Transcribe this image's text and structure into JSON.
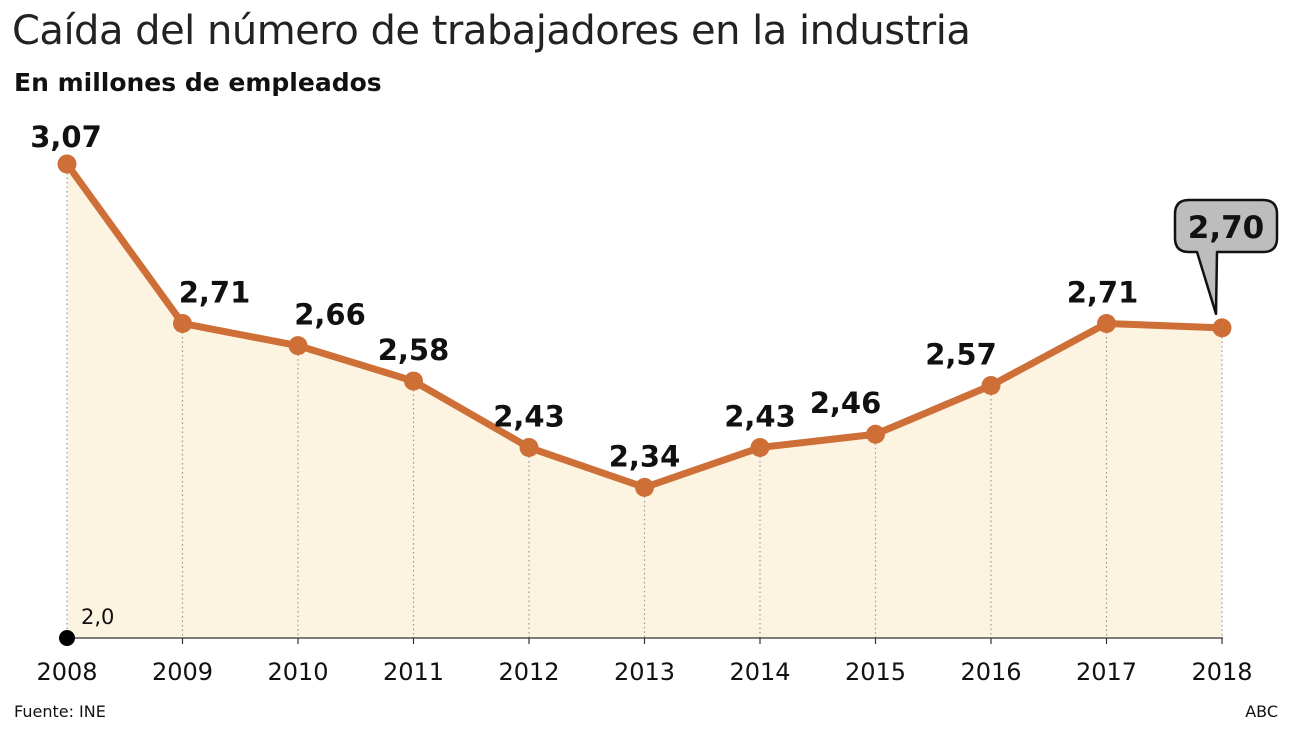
{
  "title": "Caída del número de trabajadores en la industria",
  "subtitle": "En millones de empleados",
  "source": "Fuente: INE",
  "credit": "ABC",
  "colors": {
    "line": "#cd6f37",
    "area": "#fdf3e1",
    "callout": "#bdbdbd",
    "text": "#111111"
  },
  "chart_data": {
    "type": "area",
    "x": [
      "2008",
      "2009",
      "2010",
      "2011",
      "2012",
      "2013",
      "2014",
      "2015",
      "2016",
      "2017",
      "2018"
    ],
    "values": [
      3.07,
      2.71,
      2.66,
      2.58,
      2.43,
      2.34,
      2.43,
      2.46,
      2.57,
      2.71,
      2.7
    ],
    "value_labels": [
      "3,07",
      "2,71",
      "2,66",
      "2,58",
      "2,43",
      "2,34",
      "2,43",
      "2,46",
      "2,57",
      "2,71",
      "2,70"
    ],
    "baseline_label": "2,0",
    "ylim": [
      2.0,
      3.07
    ],
    "highlight_index": 10,
    "grid": false,
    "legend": "none"
  }
}
